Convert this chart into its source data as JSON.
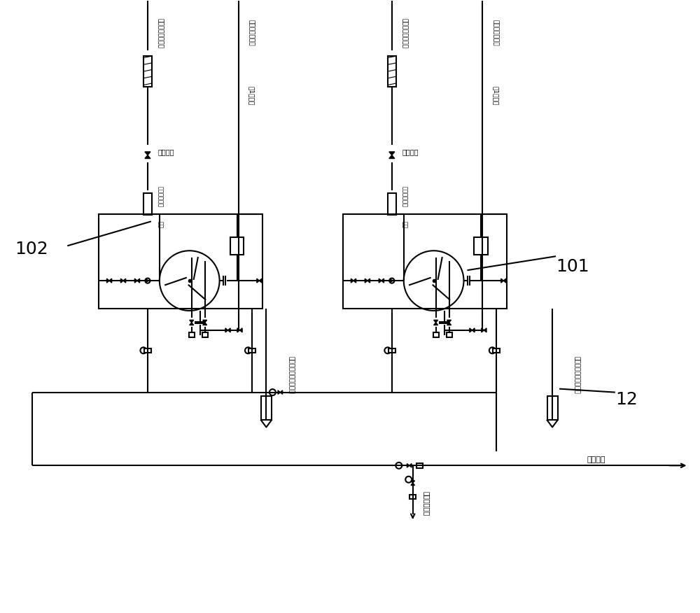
{
  "bg_color": "#ffffff",
  "line_color": "#000000",
  "line_width": 1.5,
  "fig_width": 10.0,
  "fig_height": 8.76,
  "label_101": "101",
  "label_102": "102",
  "label_12": "12",
  "text_hot_return": "热网回水",
  "text_drain": "排至水工专业",
  "text_new_valve_left": "新增阀门",
  "text_new_valve_right": "新增阀门",
  "text_top_left_vertical": "接进热网回水入口",
  "text_top_right_vertical": "接进热网回水入口",
  "text_vent_left_top": "接烟道排气管道",
  "text_vent_left_label": "自1号机组",
  "text_vent_right_top": "接烟道排气管道",
  "text_vent_right_label": "自1号机组",
  "text_exh_left": "机组排气装置之前排气",
  "text_exh_right": "机组排气装置之前排气",
  "text_pump_left1": "新增一次中间",
  "text_pump_left2": "水泵",
  "text_pump_right1": "新增一次中间",
  "text_pump_right2": "水泵",
  "text_exh_bottom_left": "机组排气装置之前排气",
  "text_exh_bottom_right": "机组排气装置之前排气"
}
